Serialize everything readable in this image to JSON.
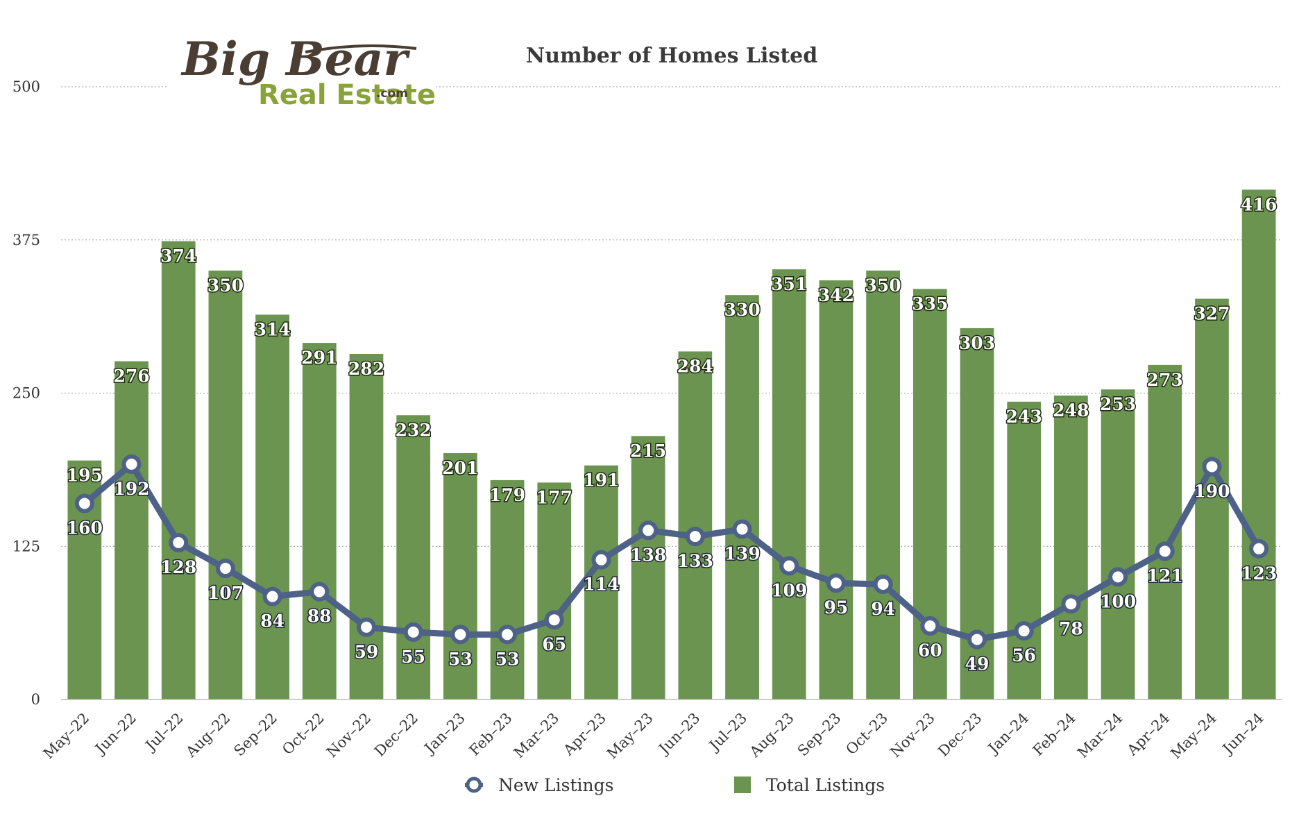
{
  "logo": {
    "script_text": "Big Bear",
    "sub_text": "Real Estate",
    "suffix_text": ".com"
  },
  "chart_data": {
    "type": "bar",
    "title": "Number of Homes Listed",
    "xlabel": "",
    "ylabel": "",
    "ylim": [
      0,
      500
    ],
    "yticks": [
      0,
      125,
      250,
      375,
      500
    ],
    "grid": true,
    "legend_position": "bottom",
    "categories": [
      "May–22",
      "Jun–22",
      "Jul–22",
      "Aug–22",
      "Sep–22",
      "Oct–22",
      "Nov–22",
      "Dec–22",
      "Jan–23",
      "Feb–23",
      "Mar–23",
      "Apr–23",
      "May–23",
      "Jun–23",
      "Jul–23",
      "Aug–23",
      "Sep–23",
      "Oct–23",
      "Nov–23",
      "Dec–23",
      "Jan–24",
      "Feb–24",
      "Mar–24",
      "Apr–24",
      "May–24",
      "Jun–24"
    ],
    "series": [
      {
        "name": "New Listings",
        "kind": "line",
        "color": "#4e6186",
        "values": [
          160,
          192,
          128,
          107,
          84,
          88,
          59,
          55,
          53,
          53,
          65,
          114,
          138,
          133,
          139,
          109,
          95,
          94,
          60,
          49,
          56,
          78,
          100,
          121,
          190,
          123
        ]
      },
      {
        "name": "Total Listings",
        "kind": "bar",
        "color": "#6a9450",
        "values": [
          195,
          276,
          374,
          350,
          314,
          291,
          282,
          232,
          201,
          179,
          177,
          191,
          215,
          284,
          330,
          351,
          342,
          350,
          335,
          303,
          243,
          248,
          253,
          273,
          327,
          416
        ]
      }
    ]
  }
}
